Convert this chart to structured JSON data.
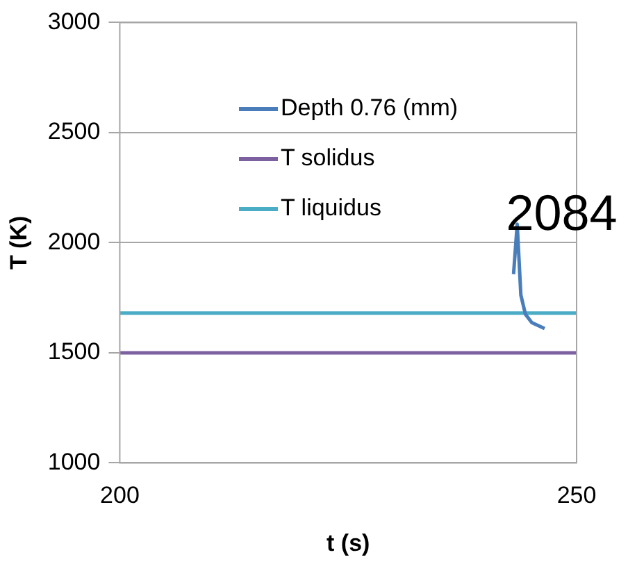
{
  "chart_data": {
    "type": "line",
    "xlabel": "t (s)",
    "ylabel": "T (K)",
    "xlim": [
      200,
      250
    ],
    "xticks": [
      200,
      250
    ],
    "ylim": [
      1000,
      3000
    ],
    "yticks": [
      1000,
      1500,
      2000,
      2500,
      3000
    ],
    "grid": "y",
    "legend": "top",
    "marker": "none",
    "line_style": "solid",
    "series": [
      {
        "name": "Depth 0.76 (mm)",
        "color": "#4a7ebb",
        "x": [
          243.1,
          243.5,
          243.9,
          244.4,
          245.1,
          246.5
        ],
        "values": [
          1857,
          2084,
          1762,
          1675,
          1637,
          1610
        ]
      },
      {
        "name": "T solidus",
        "color": "#7d60a0",
        "x": [
          200,
          250
        ],
        "values": [
          1500,
          1500
        ]
      },
      {
        "name": "T liquidus",
        "color": "#4bacc6",
        "x": [
          200,
          250
        ],
        "values": [
          1680,
          1680
        ]
      }
    ],
    "annotations": [
      {
        "text": "2084",
        "x": 243.5,
        "y": 2084
      }
    ]
  }
}
